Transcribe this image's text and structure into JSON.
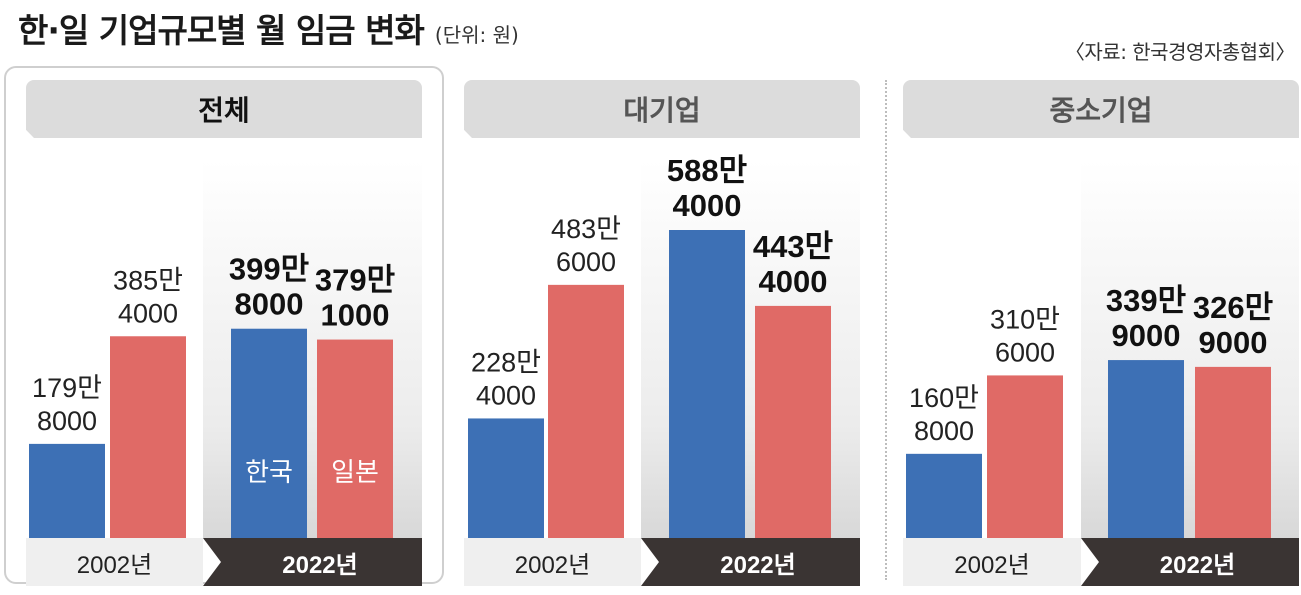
{
  "title": "한·일 기업규모별 월 임금 변화",
  "unit": "(단위: 원)",
  "source": "〈자료: 한국경영자총협회〉",
  "chart_data": {
    "type": "bar",
    "unit": "원",
    "series": [
      {
        "name": "한국",
        "color": "#3d70b5"
      },
      {
        "name": "일본",
        "color": "#e06a66"
      }
    ],
    "groups": [
      {
        "name": "전체",
        "years": [
          {
            "year": "2002년",
            "values": [
              1798000,
              3854000
            ],
            "labels": [
              [
                "179만",
                "8000"
              ],
              [
                "385만",
                "4000"
              ]
            ]
          },
          {
            "year": "2022년",
            "values": [
              3998000,
              3791000
            ],
            "labels": [
              [
                "399만",
                "8000"
              ],
              [
                "379만",
                "1000"
              ]
            ]
          }
        ]
      },
      {
        "name": "대기업",
        "years": [
          {
            "year": "2002년",
            "values": [
              2284000,
              4836000
            ],
            "labels": [
              [
                "228만",
                "4000"
              ],
              [
                "483만",
                "6000"
              ]
            ]
          },
          {
            "year": "2022년",
            "values": [
              5884000,
              4434000
            ],
            "labels": [
              [
                "588만",
                "4000"
              ],
              [
                "443만",
                "4000"
              ]
            ]
          }
        ]
      },
      {
        "name": "중소기업",
        "years": [
          {
            "year": "2002년",
            "values": [
              1608000,
              3106000
            ],
            "labels": [
              [
                "160만",
                "8000"
              ],
              [
                "310만",
                "6000"
              ]
            ]
          },
          {
            "year": "2022년",
            "values": [
              3399000,
              3269000
            ],
            "labels": [
              [
                "339만",
                "9000"
              ],
              [
                "326만",
                "9000"
              ]
            ]
          }
        ]
      }
    ]
  }
}
